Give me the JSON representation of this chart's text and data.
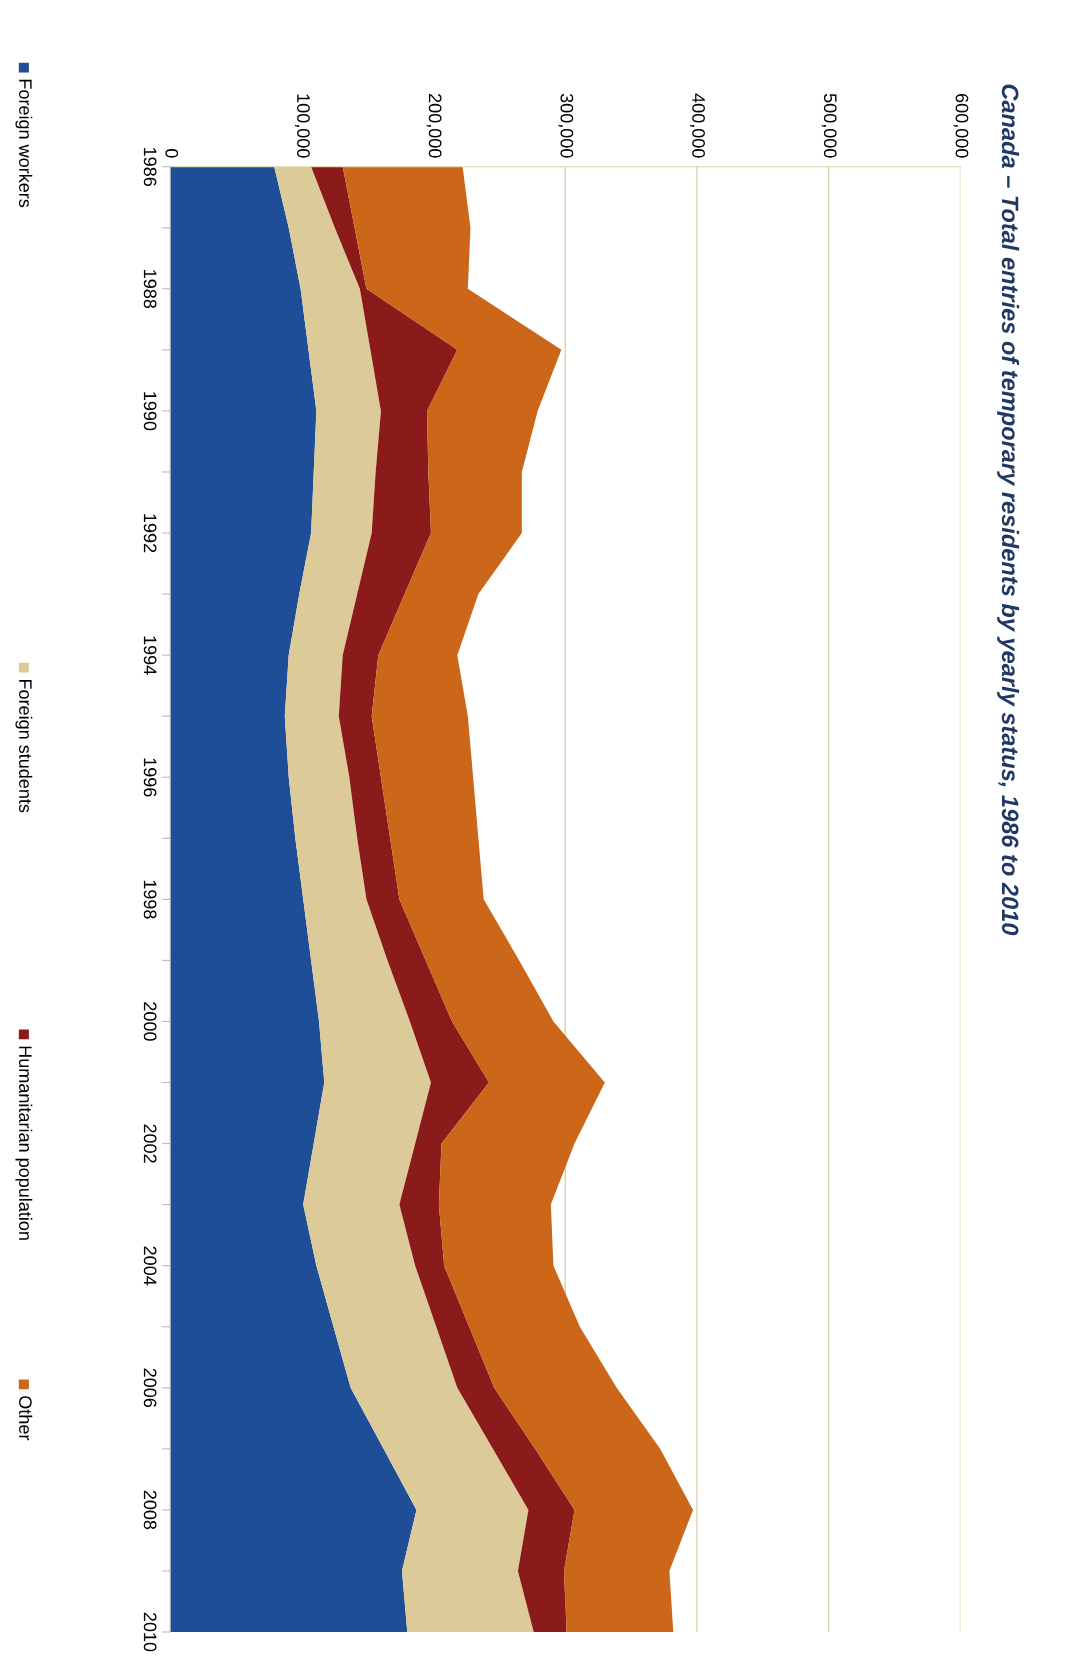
{
  "chart_data": {
    "type": "area",
    "stacked": true,
    "orientation": "horizontal",
    "title": "Canada – Total entries of temporary residents by yearly status, 1986 to 2010",
    "x": [
      1986,
      1987,
      1988,
      1989,
      1990,
      1991,
      1992,
      1993,
      1994,
      1995,
      1996,
      1997,
      1998,
      1999,
      2000,
      2001,
      2002,
      2003,
      2004,
      2005,
      2006,
      2007,
      2008,
      2009,
      2010
    ],
    "series": [
      {
        "name": "Foreign workers",
        "color": "#1f4e99",
        "values": [
          79000,
          90000,
          99000,
          105000,
          111000,
          109000,
          107000,
          98000,
          90000,
          87000,
          90000,
          95000,
          101000,
          107000,
          113000,
          117000,
          109000,
          101000,
          111000,
          124000,
          137000,
          162000,
          187000,
          176000,
          180000
        ]
      },
      {
        "name": "Foreign students",
        "color": "#dccb98",
        "values": [
          28000,
          35000,
          45000,
          47000,
          49000,
          47000,
          46000,
          44000,
          41000,
          41000,
          46000,
          47000,
          48000,
          58000,
          69000,
          81000,
          77000,
          73000,
          75000,
          78000,
          81000,
          83000,
          85000,
          88000,
          96000
        ]
      },
      {
        "name": "Humanitarian population",
        "color": "#8b1a1a",
        "values": [
          24000,
          15000,
          5000,
          66000,
          35000,
          40000,
          45000,
          36000,
          27000,
          25000,
          24000,
          25000,
          25000,
          29000,
          32000,
          44000,
          20000,
          30000,
          22000,
          25000,
          28000,
          32000,
          35000,
          35000,
          25000
        ]
      },
      {
        "name": "Other",
        "color": "#cc6618",
        "values": [
          91000,
          88000,
          77000,
          79000,
          84000,
          71000,
          69000,
          56000,
          60000,
          73000,
          70000,
          67000,
          64000,
          71000,
          77000,
          88000,
          101000,
          85000,
          83000,
          84000,
          93000,
          95000,
          90000,
          80000,
          81000
        ]
      }
    ],
    "xlim": [
      0,
      600000
    ],
    "xticks": [
      {
        "value": 0,
        "label": "0"
      },
      {
        "value": 100000,
        "label": "100,000"
      },
      {
        "value": 200000,
        "label": "200,000"
      },
      {
        "value": 300000,
        "label": "300,000"
      },
      {
        "value": 400000,
        "label": "400,000"
      },
      {
        "value": 500000,
        "label": "500,000"
      },
      {
        "value": 600000,
        "label": "600,000"
      }
    ],
    "ylim": [
      2010,
      1986
    ],
    "yticks": [
      1986,
      {
        "value": 1987,
        "label": null
      },
      1988,
      {
        "value": 1989,
        "label": null
      },
      1990,
      {
        "value": 1991,
        "label": null
      },
      1992,
      {
        "value": 1993,
        "label": null
      },
      1994,
      {
        "value": 1995,
        "label": null
      },
      1996,
      {
        "value": 1997,
        "label": null
      },
      1998,
      {
        "value": 1999,
        "label": null
      },
      2000,
      {
        "value": 2001,
        "label": null
      },
      2002,
      {
        "value": 2003,
        "label": null
      },
      2004,
      {
        "value": 2005,
        "label": null
      },
      2006,
      {
        "value": 2007,
        "label": null
      },
      2008,
      {
        "value": 2009,
        "label": null
      },
      2010
    ],
    "grid": "x",
    "legend": "left"
  }
}
